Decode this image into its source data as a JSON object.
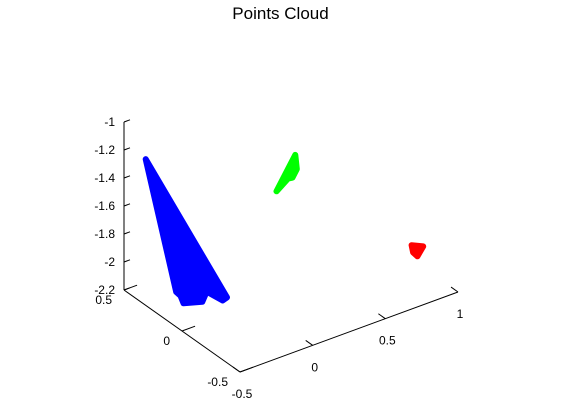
{
  "chart_data": {
    "type": "scatter",
    "projection": "3d",
    "title": "Points Cloud",
    "xlabel": "",
    "ylabel": "",
    "zlabel": "",
    "xlim": [
      -0.5,
      1
    ],
    "ylim": [
      -0.5,
      0.5
    ],
    "zlim": [
      -2.2,
      -1
    ],
    "x_ticks": [
      "-0.5",
      "0",
      "0.5",
      "1"
    ],
    "y_ticks": [
      "-0.5",
      "0",
      "0.5"
    ],
    "z_ticks": [
      "-1",
      "-1.2",
      "-1.4",
      "-1.6",
      "-1.8",
      "-2",
      "-2.2"
    ],
    "grid": false,
    "series": [
      {
        "color": "#0000ff",
        "marker": "point",
        "points": [
          {
            "x": -0.55,
            "y": -0.05,
            "z": -1.9
          },
          {
            "x": -0.45,
            "y": -0.15,
            "z": -1.85
          },
          {
            "x": -0.35,
            "y": -0.2,
            "z": -1.9
          },
          {
            "x": -0.4,
            "y": -0.05,
            "z": -2.0
          },
          {
            "x": -0.3,
            "y": -0.1,
            "z": -2.0
          },
          {
            "x": -0.5,
            "y": 0.05,
            "z": -1.95
          },
          {
            "x": -0.45,
            "y": 0.05,
            "z": -2.05
          },
          {
            "x": -0.55,
            "y": 0.25,
            "z": -1.1
          }
        ]
      },
      {
        "color": "#00ff00",
        "marker": "point",
        "points": [
          {
            "x": 0.15,
            "y": -0.1,
            "z": -1.3
          },
          {
            "x": 0.25,
            "y": -0.05,
            "z": -1.3
          },
          {
            "x": 0.2,
            "y": -0.1,
            "z": -1.15
          },
          {
            "x": 0.15,
            "y": 0.0,
            "z": -1.45
          },
          {
            "x": 0.22,
            "y": -0.05,
            "z": -1.35
          }
        ]
      },
      {
        "color": "#ff0000",
        "marker": "point",
        "points": [
          {
            "x": 1.0,
            "y": -0.2,
            "z": -2.05
          },
          {
            "x": 1.0,
            "y": -0.1,
            "z": -2.1
          },
          {
            "x": 1.05,
            "y": -0.05,
            "z": -2.2
          },
          {
            "x": 1.0,
            "y": -0.15,
            "z": -2.15
          }
        ]
      }
    ]
  }
}
